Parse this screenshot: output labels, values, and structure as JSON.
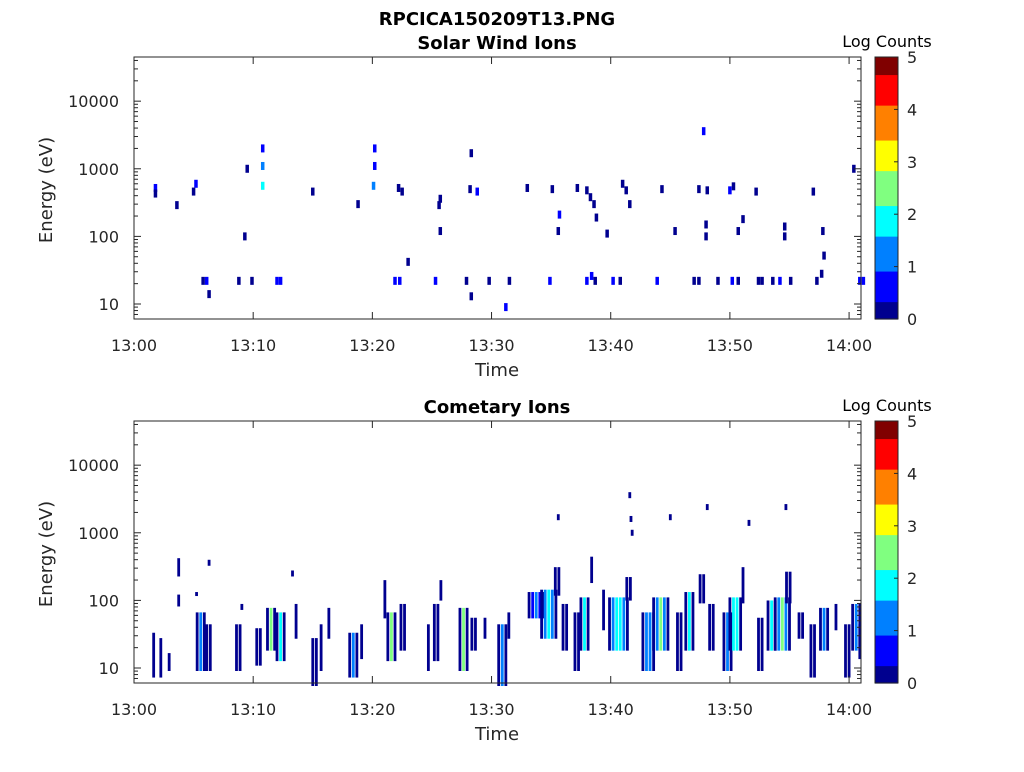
{
  "figure_title": "RPCICA150209T13.PNG",
  "colors": {
    "colormap": [
      "#00008f",
      "#0000ff",
      "#0080ff",
      "#00ffff",
      "#80ff80",
      "#ffff00",
      "#ff8000",
      "#ff0000",
      "#800000"
    ],
    "axis": "#262626"
  },
  "chart_data": [
    {
      "type": "heatmap",
      "title": "Solar Wind Ions",
      "xlabel": "Time",
      "ylabel": "Energy (eV)",
      "x_ticks": [
        "13:00",
        "13:10",
        "13:20",
        "13:30",
        "13:40",
        "13:50",
        "14:00"
      ],
      "x_range_minutes": [
        0,
        61
      ],
      "y_ticks": [
        "10",
        "100",
        "1000",
        "10000"
      ],
      "y_scale": "log",
      "ylim": [
        6,
        45000
      ],
      "colorbar": {
        "label": "Log Counts",
        "ticks": [
          "0",
          "1",
          "2",
          "3",
          "4",
          "5"
        ],
        "range": [
          0,
          5
        ]
      },
      "cells": [
        [
          1.8,
          520,
          0.5
        ],
        [
          1.8,
          430,
          0.3
        ],
        [
          5.2,
          600,
          0.5
        ],
        [
          5.0,
          460,
          0.3
        ],
        [
          3.6,
          290,
          0.2
        ],
        [
          5.8,
          22,
          0.2
        ],
        [
          6.1,
          22,
          0.4
        ],
        [
          6.3,
          14,
          0.2
        ],
        [
          8.8,
          22,
          0.3
        ],
        [
          9.5,
          1000,
          0.3
        ],
        [
          9.3,
          100,
          0.3
        ],
        [
          9.9,
          22,
          0.3
        ],
        [
          10.8,
          1100,
          1.2
        ],
        [
          10.8,
          560,
          1.6
        ],
        [
          10.8,
          2000,
          0.4
        ],
        [
          12.0,
          22,
          0.4
        ],
        [
          12.3,
          22,
          0.5
        ],
        [
          15.0,
          460,
          0.3
        ],
        [
          18.8,
          300,
          0.3
        ],
        [
          20.2,
          1100,
          0.6
        ],
        [
          20.1,
          560,
          1.4
        ],
        [
          20.2,
          2000,
          0.4
        ],
        [
          21.9,
          22,
          0.5
        ],
        [
          22.3,
          22,
          0.4
        ],
        [
          22.2,
          520,
          0.3
        ],
        [
          22.5,
          460,
          0.3
        ],
        [
          23.0,
          42,
          0.3
        ],
        [
          25.3,
          22,
          0.4
        ],
        [
          25.7,
          360,
          0.3
        ],
        [
          25.6,
          290,
          0.3
        ],
        [
          25.7,
          120,
          0.3
        ],
        [
          27.9,
          22,
          0.3
        ],
        [
          28.3,
          13,
          0.3
        ],
        [
          28.3,
          1700,
          0.3
        ],
        [
          28.2,
          500,
          0.3
        ],
        [
          28.8,
          460,
          0.4
        ],
        [
          29.8,
          22,
          0.3
        ],
        [
          31.2,
          9,
          0.4
        ],
        [
          31.5,
          22,
          0.3
        ],
        [
          33.0,
          520,
          0.3
        ],
        [
          34.9,
          22,
          0.4
        ],
        [
          35.1,
          500,
          0.3
        ],
        [
          35.7,
          210,
          0.5
        ],
        [
          35.6,
          120,
          0.3
        ],
        [
          37.2,
          520,
          0.3
        ],
        [
          38.0,
          480,
          0.3
        ],
        [
          38.0,
          22,
          0.5
        ],
        [
          38.4,
          26,
          0.4
        ],
        [
          38.3,
          380,
          0.3
        ],
        [
          38.6,
          300,
          0.3
        ],
        [
          38.8,
          190,
          0.3
        ],
        [
          38.7,
          22,
          0.3
        ],
        [
          39.7,
          110,
          0.3
        ],
        [
          40.2,
          22,
          0.4
        ],
        [
          40.8,
          22,
          0.3
        ],
        [
          41.0,
          600,
          0.3
        ],
        [
          41.3,
          480,
          0.3
        ],
        [
          41.6,
          300,
          0.3
        ],
        [
          43.9,
          22,
          0.4
        ],
        [
          44.3,
          500,
          0.3
        ],
        [
          45.4,
          120,
          0.3
        ],
        [
          47.0,
          22,
          0.3
        ],
        [
          47.4,
          22,
          0.3
        ],
        [
          47.8,
          3600,
          0.4
        ],
        [
          47.4,
          500,
          0.3
        ],
        [
          48.1,
          480,
          0.3
        ],
        [
          48.0,
          150,
          0.3
        ],
        [
          48.0,
          100,
          0.3
        ],
        [
          49.0,
          22,
          0.3
        ],
        [
          50.0,
          480,
          0.4
        ],
        [
          50.3,
          550,
          0.3
        ],
        [
          50.2,
          22,
          0.4
        ],
        [
          50.7,
          22,
          0.3
        ],
        [
          51.1,
          180,
          0.3
        ],
        [
          50.7,
          120,
          0.3
        ],
        [
          52.4,
          22,
          0.3
        ],
        [
          52.2,
          460,
          0.3
        ],
        [
          52.7,
          22,
          0.3
        ],
        [
          53.6,
          22,
          0.3
        ],
        [
          54.2,
          22,
          0.4
        ],
        [
          55.1,
          22,
          0.3
        ],
        [
          54.6,
          140,
          0.3
        ],
        [
          54.6,
          100,
          0.3
        ],
        [
          57.0,
          460,
          0.3
        ],
        [
          57.3,
          22,
          0.3
        ],
        [
          57.7,
          28,
          0.3
        ],
        [
          57.8,
          120,
          0.3
        ],
        [
          57.9,
          52,
          0.3
        ],
        [
          60.4,
          1000,
          0.3
        ],
        [
          60.9,
          22,
          0.4
        ],
        [
          61.2,
          22,
          0.4
        ]
      ]
    },
    {
      "type": "heatmap",
      "title": "Cometary Ions",
      "xlabel": "Time",
      "ylabel": "Energy (eV)",
      "x_ticks": [
        "13:00",
        "13:10",
        "13:20",
        "13:30",
        "13:40",
        "13:50",
        "14:00"
      ],
      "x_range_minutes": [
        0,
        61
      ],
      "y_ticks": [
        "10",
        "100",
        "1000",
        "10000"
      ],
      "y_scale": "log",
      "ylim": [
        6,
        45000
      ],
      "colorbar": {
        "label": "Log Counts",
        "ticks": [
          "0",
          "1",
          "2",
          "3",
          "4",
          "5"
        ],
        "range": [
          0,
          5
        ]
      },
      "bursts": [
        [
          1.8,
          8,
          30,
          0.3,
          2
        ],
        [
          2.4,
          8,
          25,
          0.3,
          2
        ],
        [
          3.1,
          10,
          15,
          0.3,
          1
        ],
        [
          3.9,
          250,
          380,
          0.3,
          1
        ],
        [
          3.9,
          90,
          110,
          0.3,
          1
        ],
        [
          5.7,
          10,
          60,
          0.8,
          3
        ],
        [
          5.4,
          250,
          120,
          0.3,
          1
        ],
        [
          6.4,
          10,
          40,
          0.6,
          3
        ],
        [
          6.4,
          360,
          360,
          0.2,
          1
        ],
        [
          8.9,
          10,
          40,
          0.6,
          3
        ],
        [
          9.2,
          80,
          80,
          0.3,
          1
        ],
        [
          10.6,
          12,
          35,
          0.6,
          2
        ],
        [
          11.7,
          20,
          70,
          1.0,
          5
        ],
        [
          12.4,
          14,
          60,
          0.8,
          4
        ],
        [
          13.8,
          30,
          80,
          0.4,
          3
        ],
        [
          13.4,
          250,
          250,
          0.2,
          1
        ],
        [
          15.3,
          6,
          25,
          0.6,
          3
        ],
        [
          15.9,
          10,
          40,
          0.4,
          2
        ],
        [
          16.5,
          30,
          70,
          0.3,
          1
        ],
        [
          18.5,
          8,
          30,
          0.8,
          3
        ],
        [
          19.3,
          15,
          40,
          0.4,
          2
        ],
        [
          21.2,
          60,
          180,
          0.3,
          1
        ],
        [
          21.8,
          14,
          60,
          1.0,
          5
        ],
        [
          22.7,
          20,
          80,
          0.6,
          2
        ],
        [
          24.9,
          10,
          40,
          0.4,
          2
        ],
        [
          25.5,
          14,
          80,
          0.6,
          4
        ],
        [
          25.9,
          110,
          180,
          0.3,
          1
        ],
        [
          27.8,
          10,
          70,
          0.9,
          5
        ],
        [
          28.6,
          20,
          50,
          0.5,
          2
        ],
        [
          29.6,
          30,
          50,
          0.3,
          2
        ],
        [
          31.0,
          6,
          40,
          0.8,
          3
        ],
        [
          31.6,
          30,
          60,
          0.3,
          2
        ],
        [
          33.9,
          60,
          120,
          1.5,
          3
        ],
        [
          35.0,
          30,
          130,
          1.6,
          4
        ],
        [
          35.6,
          130,
          280,
          0.5,
          2
        ],
        [
          35.7,
          1700,
          1700,
          0.2,
          1
        ],
        [
          36.3,
          20,
          80,
          0.6,
          2
        ],
        [
          37.3,
          10,
          60,
          0.6,
          3
        ],
        [
          38.0,
          20,
          100,
          1.0,
          4
        ],
        [
          38.6,
          200,
          400,
          0.4,
          2
        ],
        [
          39.6,
          40,
          130,
          0.4,
          2
        ],
        [
          40.8,
          20,
          100,
          1.8,
          5
        ],
        [
          41.6,
          110,
          200,
          0.5,
          2
        ],
        [
          41.7,
          3600,
          3600,
          0.2,
          1
        ],
        [
          41.8,
          1600,
          1600,
          0.2,
          1
        ],
        [
          41.9,
          1000,
          1000,
          0.2,
          1
        ],
        [
          43.3,
          10,
          60,
          1.2,
          3
        ],
        [
          44.3,
          20,
          100,
          1.4,
          5
        ],
        [
          45.1,
          1700,
          1700,
          0.2,
          1
        ],
        [
          45.9,
          10,
          60,
          0.6,
          3
        ],
        [
          46.8,
          20,
          120,
          1.0,
          4
        ],
        [
          47.8,
          100,
          220,
          0.6,
          2
        ],
        [
          48.2,
          2400,
          2400,
          0.2,
          1
        ],
        [
          48.6,
          20,
          80,
          0.6,
          3
        ],
        [
          49.9,
          10,
          60,
          0.8,
          3
        ],
        [
          50.6,
          20,
          100,
          1.2,
          5
        ],
        [
          51.3,
          100,
          280,
          0.4,
          2
        ],
        [
          51.7,
          1400,
          1400,
          0.2,
          1
        ],
        [
          52.7,
          10,
          50,
          0.6,
          3
        ],
        [
          53.7,
          20,
          90,
          1.0,
          4
        ],
        [
          54.5,
          20,
          100,
          1.4,
          5
        ],
        [
          55.0,
          100,
          240,
          0.5,
          2
        ],
        [
          54.8,
          2400,
          2400,
          0.2,
          1
        ],
        [
          56.1,
          30,
          60,
          0.6,
          2
        ],
        [
          57.1,
          8,
          40,
          0.6,
          3
        ],
        [
          58.0,
          20,
          70,
          0.8,
          3
        ],
        [
          59.1,
          40,
          80,
          0.4,
          2
        ],
        [
          60.0,
          8,
          40,
          0.6,
          3
        ],
        [
          60.7,
          20,
          80,
          0.8,
          3
        ],
        [
          61.1,
          15,
          40,
          0.4,
          2
        ]
      ]
    }
  ]
}
